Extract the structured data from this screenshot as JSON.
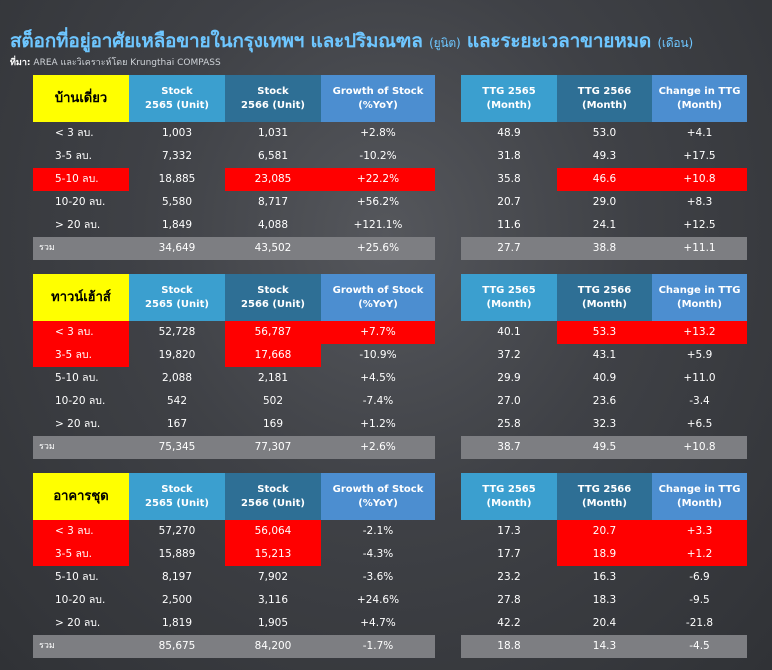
{
  "title": {
    "main": "สต็อกที่อยู่อาศัยเหลือขายในกรุงเทพฯ และปริมณฑล",
    "unit": "(ยูนิต)",
    "middle": "และระยะเวลาขายหมด",
    "unit2": "(เดือน)"
  },
  "source": {
    "label": "ที่มา:",
    "text": "AREA และวิเคราะห์โดย Krungthai COMPASS"
  },
  "colors": {
    "accent_blue": "#3b9fcf",
    "dark_blue": "#2e6f95",
    "mid_blue": "#4c8ed0",
    "highlight_red": "#ff0000",
    "category_yellow": "#ffff00",
    "total_gray": "#7d7e82"
  },
  "headers": {
    "stock_2565": [
      "Stock",
      "2565 (Unit)"
    ],
    "stock_2566": [
      "Stock",
      "2566 (Unit)"
    ],
    "growth": [
      "Growth of Stock",
      "(%YoY)"
    ],
    "ttg_2565": [
      "TTG 2565",
      "(Month)"
    ],
    "ttg_2566": [
      "TTG 2566",
      "(Month)"
    ],
    "ttg_change": [
      "Change in TTG",
      "(Month)"
    ]
  },
  "sections": [
    {
      "name": "บ้านเดี่ยว",
      "rows": [
        {
          "label": "< 3 ลบ.",
          "s65": "1,003",
          "s66": "1,031",
          "g": "+2.8%",
          "t65": "48.9",
          "t66": "53.0",
          "tc": "+4.1",
          "hl": []
        },
        {
          "label": "3-5 ลบ.",
          "s65": "7,332",
          "s66": "6,581",
          "g": "-10.2%",
          "t65": "31.8",
          "t66": "49.3",
          "tc": "+17.5",
          "hl": []
        },
        {
          "label": "5-10 ลบ.",
          "s65": "18,885",
          "s66": "23,085",
          "g": "+22.2%",
          "t65": "35.8",
          "t66": "46.6",
          "tc": "+10.8",
          "hl": [
            "label",
            "s66",
            "g",
            "t66",
            "tc"
          ]
        },
        {
          "label": "10-20 ลบ.",
          "s65": "5,580",
          "s66": "8,717",
          "g": "+56.2%",
          "t65": "20.7",
          "t66": "29.0",
          "tc": "+8.3",
          "hl": []
        },
        {
          "label": "> 20 ลบ.",
          "s65": "1,849",
          "s66": "4,088",
          "g": "+121.1%",
          "t65": "11.6",
          "t66": "24.1",
          "tc": "+12.5",
          "hl": []
        }
      ],
      "total": {
        "label": "รวม",
        "s65": "34,649",
        "s66": "43,502",
        "g": "+25.6%",
        "t65": "27.7",
        "t66": "38.8",
        "tc": "+11.1"
      }
    },
    {
      "name": "ทาวน์เฮ้าส์",
      "rows": [
        {
          "label": "< 3 ลบ.",
          "s65": "52,728",
          "s66": "56,787",
          "g": "+7.7%",
          "t65": "40.1",
          "t66": "53.3",
          "tc": "+13.2",
          "hl": [
            "label",
            "s66",
            "g",
            "t66",
            "tc"
          ]
        },
        {
          "label": "3-5 ลบ.",
          "s65": "19,820",
          "s66": "17,668",
          "g": "-10.9%",
          "t65": "37.2",
          "t66": "43.1",
          "tc": "+5.9",
          "hl": [
            "label",
            "s66"
          ]
        },
        {
          "label": "5-10 ลบ.",
          "s65": "2,088",
          "s66": "2,181",
          "g": "+4.5%",
          "t65": "29.9",
          "t66": "40.9",
          "tc": "+11.0",
          "hl": []
        },
        {
          "label": "10-20 ลบ.",
          "s65": "542",
          "s66": "502",
          "g": "-7.4%",
          "t65": "27.0",
          "t66": "23.6",
          "tc": "-3.4",
          "hl": []
        },
        {
          "label": "> 20 ลบ.",
          "s65": "167",
          "s66": "169",
          "g": "+1.2%",
          "t65": "25.8",
          "t66": "32.3",
          "tc": "+6.5",
          "hl": []
        }
      ],
      "total": {
        "label": "รวม",
        "s65": "75,345",
        "s66": "77,307",
        "g": "+2.6%",
        "t65": "38.7",
        "t66": "49.5",
        "tc": "+10.8"
      }
    },
    {
      "name": "อาคารชุด",
      "rows": [
        {
          "label": "< 3 ลบ.",
          "s65": "57,270",
          "s66": "56,064",
          "g": "-2.1%",
          "t65": "17.3",
          "t66": "20.7",
          "tc": "+3.3",
          "hl": [
            "label",
            "s66",
            "t66",
            "tc"
          ]
        },
        {
          "label": "3-5 ลบ.",
          "s65": "15,889",
          "s66": "15,213",
          "g": "-4.3%",
          "t65": "17.7",
          "t66": "18.9",
          "tc": "+1.2",
          "hl": [
            "label",
            "s66",
            "t66",
            "tc"
          ]
        },
        {
          "label": "5-10 ลบ.",
          "s65": "8,197",
          "s66": "7,902",
          "g": "-3.6%",
          "t65": "23.2",
          "t66": "16.3",
          "tc": "-6.9",
          "hl": []
        },
        {
          "label": "10-20 ลบ.",
          "s65": "2,500",
          "s66": "3,116",
          "g": "+24.6%",
          "t65": "27.8",
          "t66": "18.3",
          "tc": "-9.5",
          "hl": []
        },
        {
          "label": "> 20 ลบ.",
          "s65": "1,819",
          "s66": "1,905",
          "g": "+4.7%",
          "t65": "42.2",
          "t66": "20.4",
          "tc": "-21.8",
          "hl": []
        }
      ],
      "total": {
        "label": "รวม",
        "s65": "85,675",
        "s66": "84,200",
        "g": "-1.7%",
        "t65": "18.8",
        "t66": "14.3",
        "tc": "-4.5"
      }
    }
  ]
}
